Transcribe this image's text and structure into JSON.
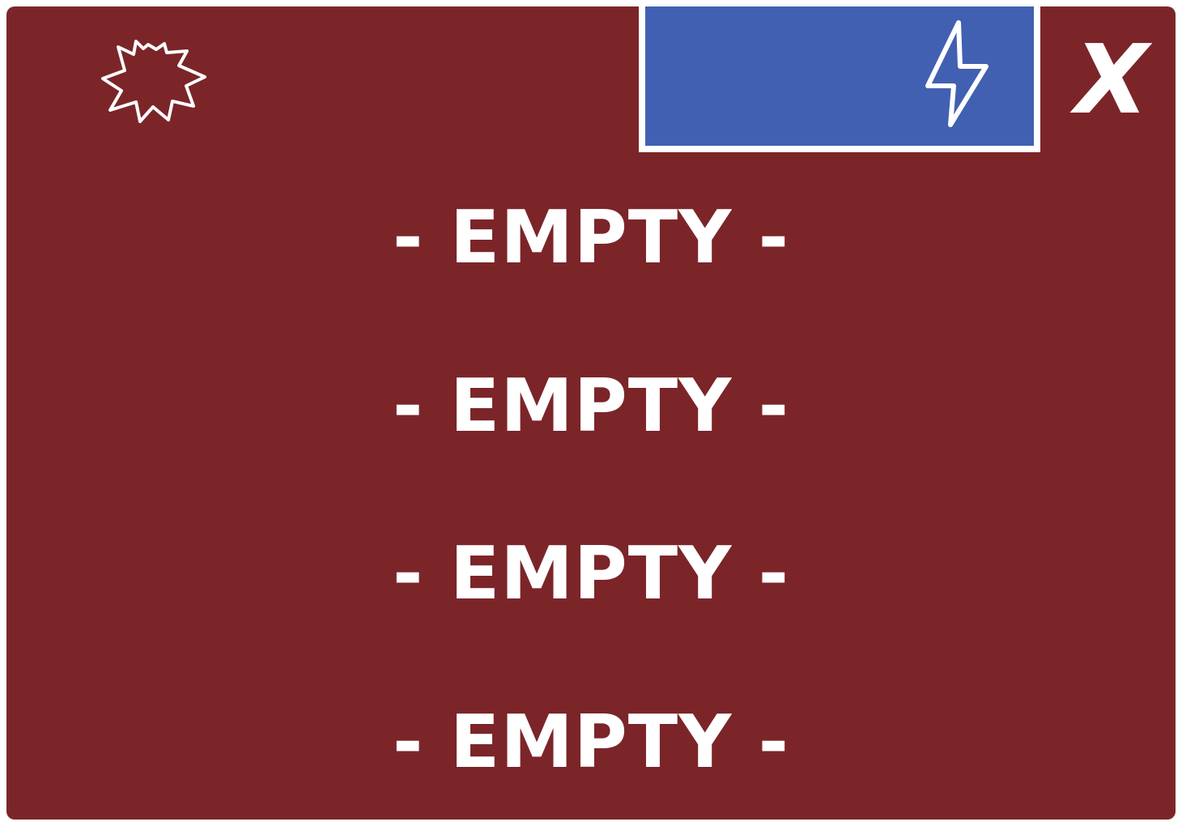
{
  "header": {
    "burst_icon": "burst-icon",
    "power_button_icon": "lightning-bolt-icon",
    "close_label": "X"
  },
  "slots": [
    {
      "label": "- EMPTY -"
    },
    {
      "label": "- EMPTY -"
    },
    {
      "label": "- EMPTY -"
    },
    {
      "label": "- EMPTY -"
    }
  ],
  "colors": {
    "panel_background": "#7b2529",
    "power_button_background": "#4160b1",
    "foreground": "#ffffff"
  }
}
